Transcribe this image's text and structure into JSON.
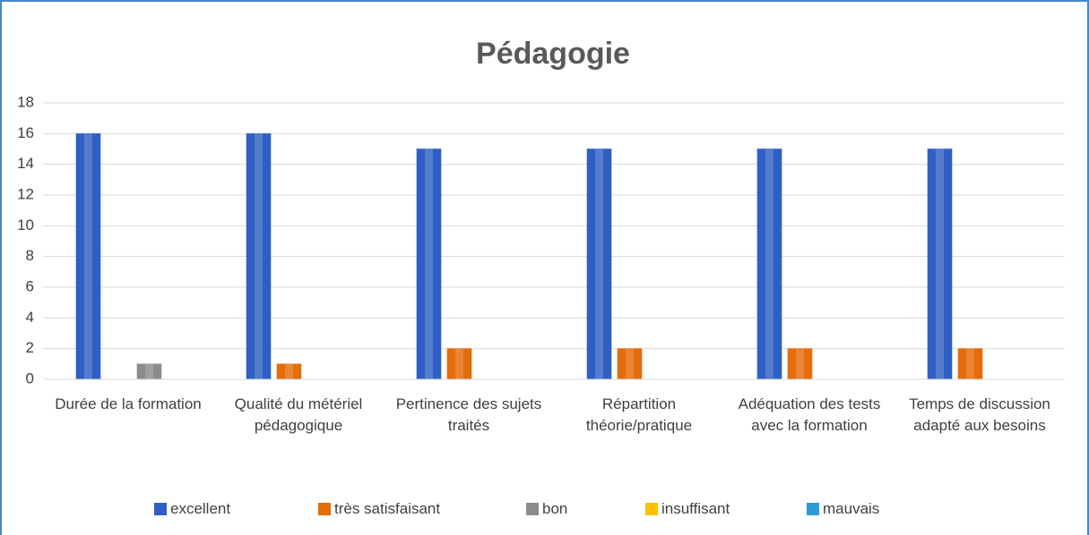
{
  "chart_data": {
    "type": "bar",
    "title": "Pédagogie",
    "categories": [
      "Durée de la formation",
      "Qualité du métériel pédagogique",
      "Pertinence des sujets traités",
      "Répartition théorie/pratique",
      "Adéquation des tests avec la formation",
      "Temps de discussion adapté aux besoins"
    ],
    "series": [
      {
        "name": "excellent",
        "color": "#2f5fc4",
        "values": [
          16,
          16,
          15,
          15,
          15,
          15
        ]
      },
      {
        "name": "très satisfaisant",
        "color": "#e46c0a",
        "values": [
          0,
          1,
          2,
          2,
          2,
          2
        ]
      },
      {
        "name": "bon",
        "color": "#8c8c8c",
        "values": [
          1,
          0,
          0,
          0,
          0,
          0
        ]
      },
      {
        "name": "insuffisant",
        "color": "#ffc000",
        "values": [
          0,
          0,
          0,
          0,
          0,
          0
        ]
      },
      {
        "name": "mauvais",
        "color": "#2e9bd6",
        "values": [
          0,
          0,
          0,
          0,
          0,
          0
        ]
      }
    ],
    "ylim": [
      0,
      18
    ],
    "yticks": [
      0,
      2,
      4,
      6,
      8,
      10,
      12,
      14,
      16,
      18
    ],
    "grid": true,
    "legend": "bottom"
  }
}
